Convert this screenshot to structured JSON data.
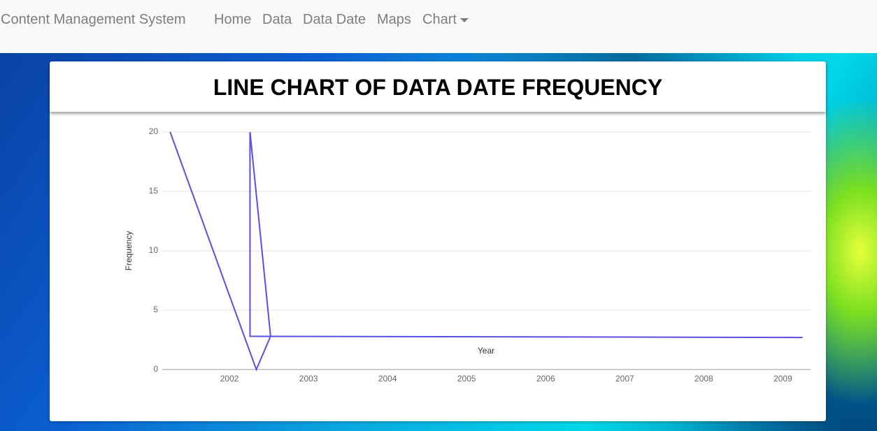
{
  "navbar": {
    "brand": "Content Management System",
    "links": [
      "Home",
      "Data",
      "Data Date",
      "Maps",
      "Chart"
    ]
  },
  "chart_data": {
    "type": "line",
    "title": "LINE CHART OF DATA DATE FREQUENCY",
    "x_label": "Year",
    "y_label": "Frequency",
    "x": [
      2001.25,
      2002.34,
      2002.52,
      2002.26,
      2002.26,
      2009.25
    ],
    "values": [
      20,
      0,
      2.8,
      20,
      2.8,
      2.7
    ],
    "color": "#5b4fe0",
    "xlim": [
      2001.15,
      2009.35
    ],
    "xticks": [
      2002,
      2003,
      2004,
      2005,
      2006,
      2007,
      2008,
      2009
    ],
    "ylim": [
      0,
      20
    ],
    "yticks": [
      0,
      5,
      10,
      15,
      20
    ],
    "grid": true
  }
}
